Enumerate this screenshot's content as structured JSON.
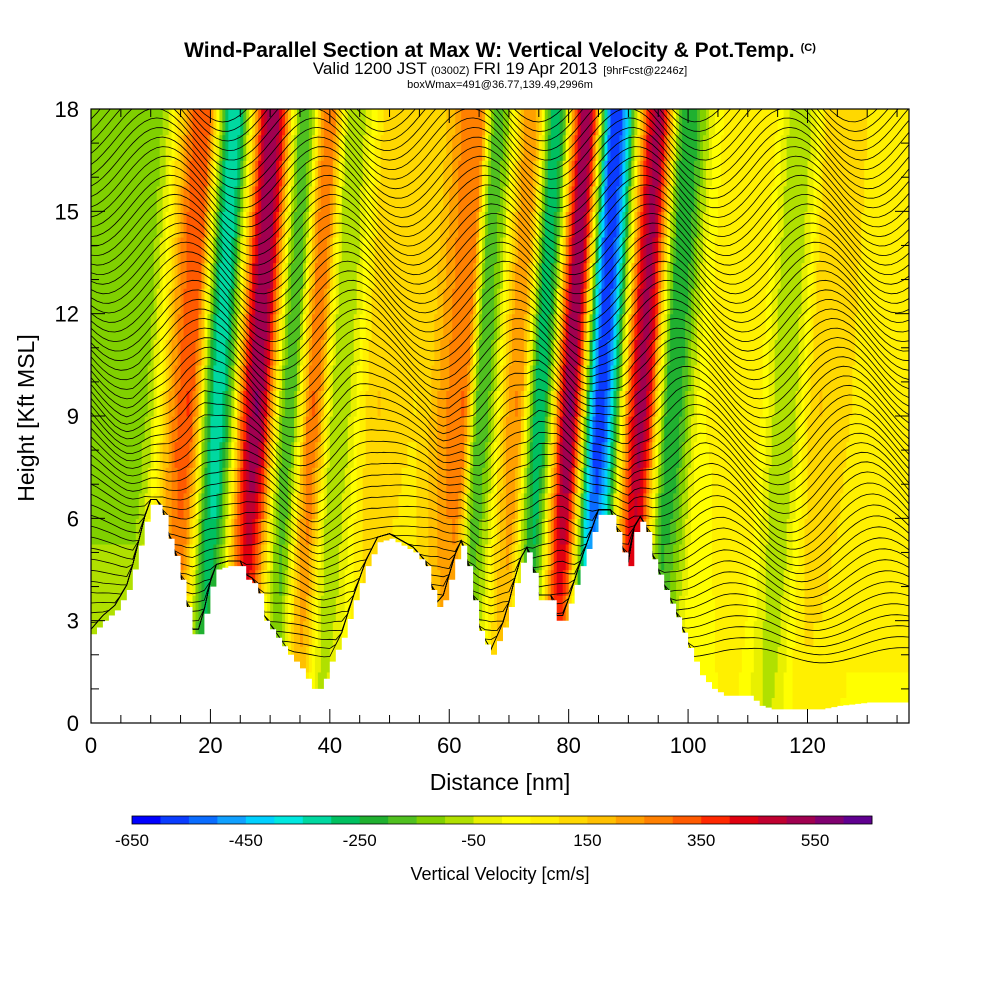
{
  "header": {
    "title_main": "Wind-Parallel Section at Max W: Vertical Velocity & Pot.Temp.",
    "title_mark": "(C)",
    "valid_main": "Valid 1200 JST",
    "valid_utc": "(0300Z)",
    "valid_date": "FRI 19 Apr 2013",
    "valid_fcst": "[9hrFcst@2246z]",
    "box_info": "boxWmax=491@36.77,139.49,2996m"
  },
  "chart_data": {
    "type": "heatmap",
    "xlabel": "Distance [nm]",
    "ylabel": "Height [Kft MSL]",
    "xlim": [
      0,
      137
    ],
    "ylim": [
      0,
      18
    ],
    "x_ticks": [
      0,
      20,
      40,
      60,
      80,
      100,
      120
    ],
    "y_ticks": [
      0,
      3,
      6,
      9,
      12,
      15,
      18
    ],
    "colorbar": {
      "label": "Vertical Velocity [cm/s]",
      "tick_labels": [
        "-650",
        "-450",
        "-250",
        "-50",
        "150",
        "350",
        "550"
      ],
      "colors": [
        "#0000ff",
        "#0a3cff",
        "#0a6cff",
        "#10a0ff",
        "#00d0ff",
        "#00e8e0",
        "#00d8a0",
        "#00c060",
        "#20b030",
        "#50c020",
        "#80d000",
        "#b0e000",
        "#e8f000",
        "#ffff00",
        "#fff000",
        "#ffd800",
        "#ffc000",
        "#ffa000",
        "#ff8000",
        "#ff5a00",
        "#ff2800",
        "#e00010",
        "#c00030",
        "#a00050",
        "#800070",
        "#600090"
      ]
    },
    "velocity_bands": [
      {
        "x": 8,
        "w": -120
      },
      {
        "x": 16,
        "w": 350
      },
      {
        "x": 21,
        "w": -350
      },
      {
        "x": 27.5,
        "w": 550
      },
      {
        "x": 33,
        "w": -200
      },
      {
        "x": 37,
        "w": 300
      },
      {
        "x": 41,
        "w": -100
      },
      {
        "x": 48,
        "w": 150
      },
      {
        "x": 54,
        "w": 100
      },
      {
        "x": 62,
        "w": 300
      },
      {
        "x": 65,
        "w": -200
      },
      {
        "x": 71,
        "w": 250
      },
      {
        "x": 75,
        "w": -300
      },
      {
        "x": 80,
        "w": 550
      },
      {
        "x": 85,
        "w": -600
      },
      {
        "x": 92,
        "w": 520
      },
      {
        "x": 97,
        "w": -250
      },
      {
        "x": 103,
        "w": 50
      },
      {
        "x": 110,
        "w": 100
      },
      {
        "x": 116,
        "w": -100
      },
      {
        "x": 122,
        "w": 150
      },
      {
        "x": 130,
        "w": 80
      }
    ],
    "terrain_kft": [
      [
        0,
        2.6
      ],
      [
        2,
        3.0
      ],
      [
        4,
        3.3
      ],
      [
        6,
        3.9
      ],
      [
        7,
        4.5
      ],
      [
        8,
        5.2
      ],
      [
        9,
        5.9
      ],
      [
        10,
        6.4
      ],
      [
        11,
        6.4
      ],
      [
        12,
        6.1
      ],
      [
        13,
        5.4
      ],
      [
        14,
        4.9
      ],
      [
        15,
        4.2
      ],
      [
        16,
        3.4
      ],
      [
        17,
        2.6
      ],
      [
        18,
        2.6
      ],
      [
        19,
        3.2
      ],
      [
        20,
        4.0
      ],
      [
        21,
        4.5
      ],
      [
        23,
        4.6
      ],
      [
        25,
        4.6
      ],
      [
        26,
        4.2
      ],
      [
        27,
        4.1
      ],
      [
        28,
        3.8
      ],
      [
        29,
        3.0
      ],
      [
        31,
        2.5
      ],
      [
        33,
        2.0
      ],
      [
        35,
        1.6
      ],
      [
        36,
        1.3
      ],
      [
        37,
        1.0
      ],
      [
        38,
        1.0
      ],
      [
        39,
        1.3
      ],
      [
        40,
        1.8
      ],
      [
        42,
        2.5
      ],
      [
        44,
        3.6
      ],
      [
        46,
        4.6
      ],
      [
        48,
        5.3
      ],
      [
        50,
        5.4
      ],
      [
        52,
        5.2
      ],
      [
        54,
        5.0
      ],
      [
        56,
        4.6
      ],
      [
        57,
        3.9
      ],
      [
        58,
        3.4
      ],
      [
        59,
        3.6
      ],
      [
        60,
        4.2
      ],
      [
        61,
        4.8
      ],
      [
        62,
        5.2
      ],
      [
        63,
        4.6
      ],
      [
        64,
        3.6
      ],
      [
        65,
        2.7
      ],
      [
        66,
        2.3
      ],
      [
        67,
        2.0
      ],
      [
        68,
        2.4
      ],
      [
        69,
        2.8
      ],
      [
        70,
        3.4
      ],
      [
        71,
        4.1
      ],
      [
        72,
        4.7
      ],
      [
        73,
        5.0
      ],
      [
        74,
        4.4
      ],
      [
        75,
        3.6
      ],
      [
        77,
        3.6
      ],
      [
        78,
        3.0
      ],
      [
        79,
        3.0
      ],
      [
        80,
        3.5
      ],
      [
        82,
        4.6
      ],
      [
        84,
        5.6
      ],
      [
        85,
        6.1
      ],
      [
        87,
        6.1
      ],
      [
        88,
        5.6
      ],
      [
        89,
        5.0
      ],
      [
        90,
        4.6
      ],
      [
        91,
        5.6
      ],
      [
        92,
        5.9
      ],
      [
        93,
        5.6
      ],
      [
        94,
        4.8
      ],
      [
        96,
        3.9
      ],
      [
        98,
        3.1
      ],
      [
        100,
        2.2
      ],
      [
        102,
        1.4
      ],
      [
        104,
        1.0
      ],
      [
        106,
        0.8
      ],
      [
        108,
        0.8
      ],
      [
        110,
        0.8
      ],
      [
        112,
        0.5
      ],
      [
        114,
        0.4
      ],
      [
        118,
        0.4
      ],
      [
        122,
        0.4
      ],
      [
        125,
        0.5
      ],
      [
        130,
        0.6
      ],
      [
        137,
        0.6
      ]
    ]
  }
}
